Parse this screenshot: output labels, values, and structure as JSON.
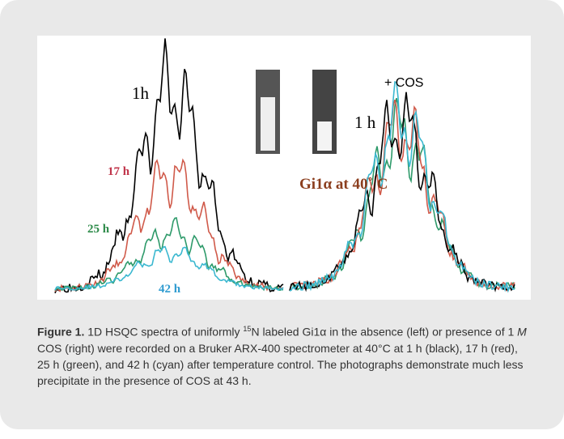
{
  "figure": {
    "labels": {
      "left_1h": "1h",
      "left_17h": "17 h",
      "left_25h": "25 h",
      "left_42h": "42 h",
      "right_cos": "+ COS",
      "right_1h": "1 h",
      "photo_caption": "Gi1α at 40˚ C"
    },
    "caption": {
      "lead": "Figure 1.",
      "part1": " 1D HSQC spectra of uniformly ",
      "superscript": "15",
      "part2": "N labeled Gi1α in the absence (left) or presence of 1 ",
      "italic": "M",
      "part3": " COS (right) were recorded on a Bruker ARX-400 spectrometer at 40°C at 1 h (black), 17 h (red), 25 h (green), and 42 h (cyan) after temperature control. The photographs demonstrate much less precipitate in the presence of COS at 43 h."
    }
  }
}
